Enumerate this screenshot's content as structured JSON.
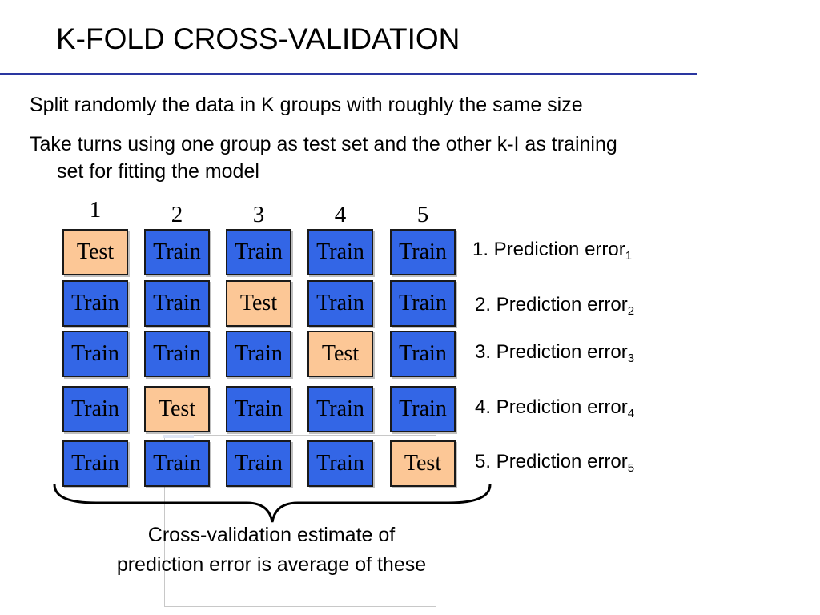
{
  "slide": {
    "title": "K-FOLD CROSS-VALIDATION",
    "rule_color": "#2a36a0",
    "bullets": [
      "Split randomly the data in K  groups with roughly the same size",
      "Take turns using one group as test set and the other k-I as training",
      "set for fitting the model"
    ]
  },
  "diagram": {
    "columns": [
      "1",
      "2",
      "3",
      "4",
      "5"
    ],
    "colors": {
      "train": "#3366e6",
      "test": "#fcc796"
    },
    "rows": [
      {
        "cells": [
          "Test",
          "Train",
          "Train",
          "Train",
          "Train"
        ],
        "result_label": "1. Prediction error",
        "result_sub": "1"
      },
      {
        "cells": [
          "Train",
          "Train",
          "Test",
          "Train",
          "Train"
        ],
        "result_label": "2. Prediction error",
        "result_sub": "2"
      },
      {
        "cells": [
          "Train",
          "Train",
          "Train",
          "Test",
          "Train"
        ],
        "result_label": "3. Prediction error",
        "result_sub": "3"
      },
      {
        "cells": [
          "Train",
          "Test",
          "Train",
          "Train",
          "Train"
        ],
        "result_label": "4. Prediction error",
        "result_sub": "4"
      },
      {
        "cells": [
          "Train",
          "Train",
          "Train",
          "Train",
          "Test"
        ],
        "result_label": "5. Prediction error",
        "result_sub": "5"
      }
    ],
    "caption_line1": "Cross-validation estimate of",
    "caption_line2": "prediction error is average of these"
  }
}
